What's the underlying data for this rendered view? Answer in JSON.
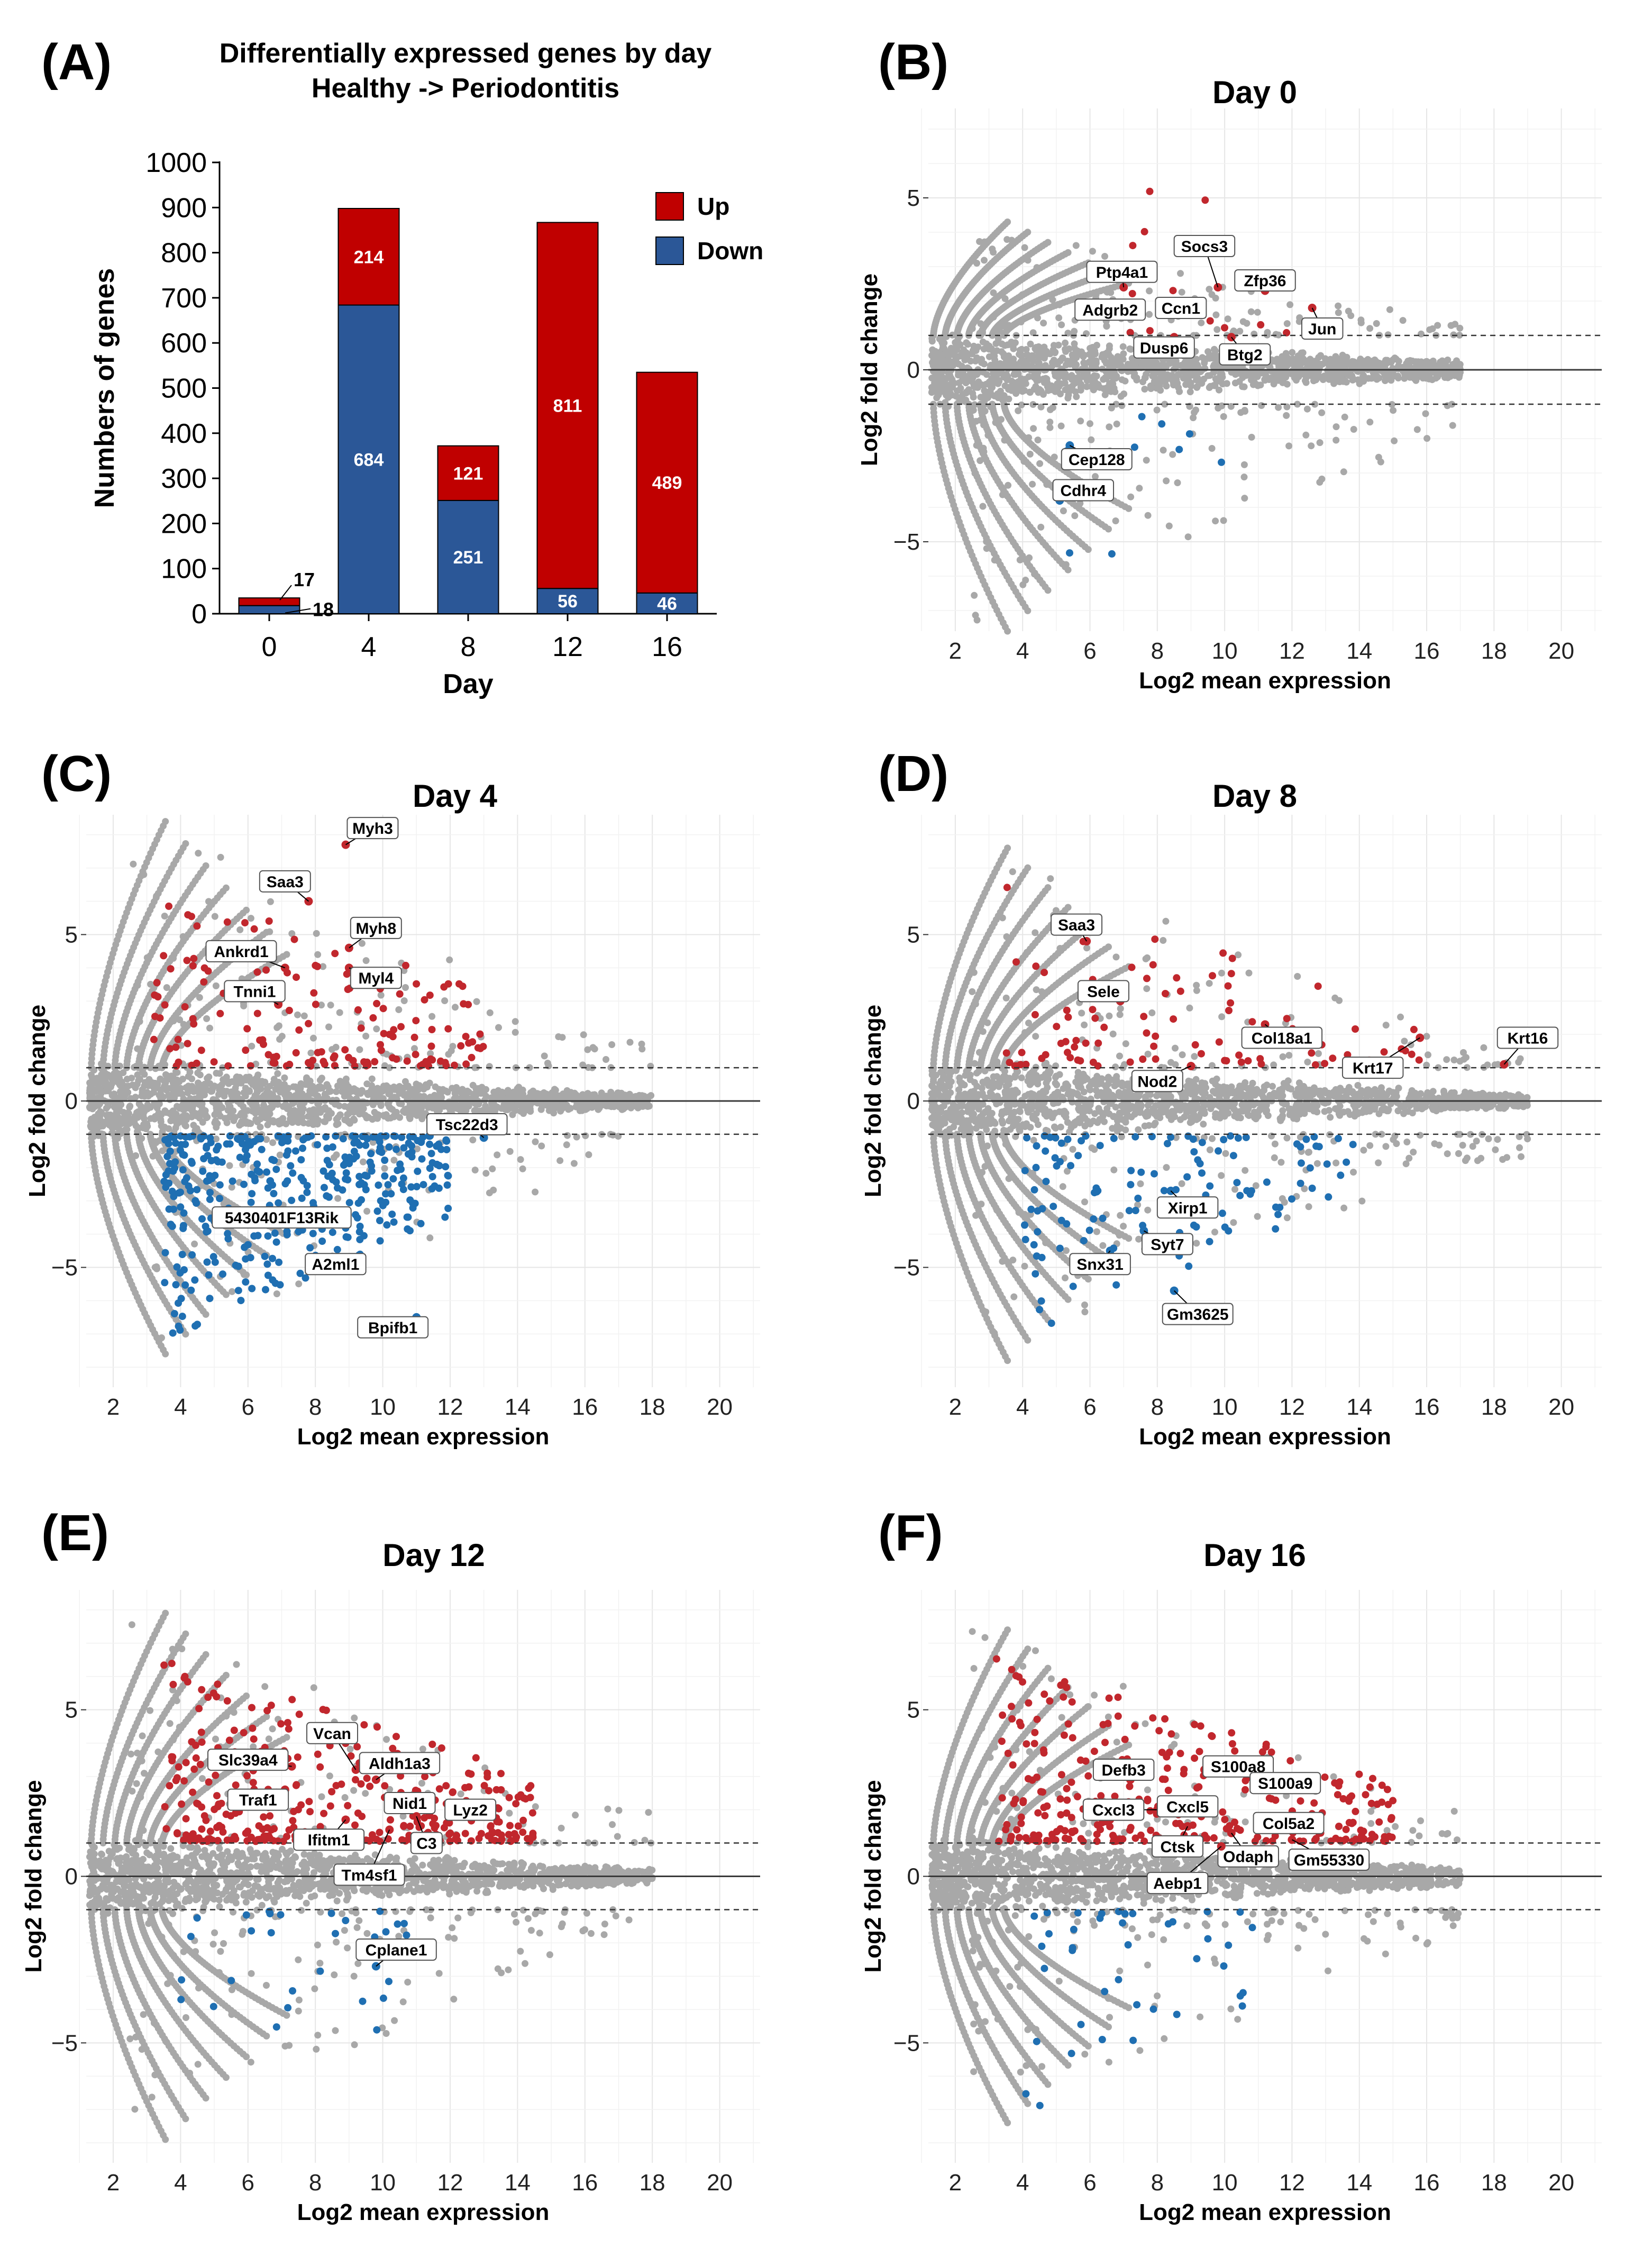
{
  "colors": {
    "up": "#c00000",
    "down": "#2b5797",
    "sig_up": "#c1272d",
    "sig_down": "#1f6fb2",
    "background": "#a8a8a8"
  },
  "panels": {
    "A": "(A)",
    "B": "(B)",
    "C": "(C)",
    "D": "(D)",
    "E": "(E)",
    "F": "(F)"
  },
  "chart_data": [
    {
      "id": "A",
      "type": "bar",
      "stacked": true,
      "title_line1": "Differentially expressed genes by day",
      "title_line2": "Healthy -> Periodontitis",
      "xlabel": "Day",
      "ylabel": "Numbers of genes",
      "ylim": [
        0,
        1000
      ],
      "yticks": [
        "0",
        "100",
        "200",
        "300",
        "400",
        "500",
        "600",
        "700",
        "800",
        "900",
        "1000"
      ],
      "categories": [
        "0",
        "4",
        "8",
        "12",
        "16"
      ],
      "series": [
        {
          "name": "Down",
          "values": [
            18,
            684,
            251,
            56,
            46
          ]
        },
        {
          "name": "Up",
          "values": [
            17,
            214,
            121,
            811,
            489
          ]
        }
      ],
      "value_labels": {
        "up": [
          "17",
          "214",
          "121",
          "811",
          "489"
        ],
        "down": [
          "18",
          "684",
          "251",
          "56",
          "46"
        ]
      },
      "legend": [
        "Up",
        "Down"
      ],
      "legend_position": "top-right"
    },
    {
      "id": "B",
      "type": "scatter",
      "title": "Day 0",
      "xlabel": "Log2 mean expression",
      "ylabel": "Log2 fold change",
      "xlim": [
        1.2,
        21.2
      ],
      "ylim": [
        -7.6,
        7.6
      ],
      "xticks": [
        "2",
        "4",
        "6",
        "8",
        "10",
        "12",
        "14",
        "16",
        "18",
        "20"
      ],
      "yticks": [
        "5",
        "0",
        "−5"
      ],
      "ytick_values": [
        5,
        0,
        -5
      ],
      "thresholds": [
        1,
        -1
      ],
      "bg_ymax": 4.3,
      "bg_ymin": -7.6,
      "core_half": 0.9,
      "tail_x": 17,
      "up_count": 14,
      "down_count": 9,
      "up_xr": [
        7,
        13
      ],
      "down_xr": [
        4.5,
        10
      ],
      "labeled_genes": [
        {
          "gene": "Ptp4a1",
          "x": 7.0,
          "y": 2.4,
          "lx": 6.95,
          "ly": 2.85
        },
        {
          "gene": "Socs3",
          "x": 9.8,
          "y": 2.4,
          "lx": 9.4,
          "ly": 3.6
        },
        {
          "gene": "Zfp36",
          "x": 11.2,
          "y": 2.3,
          "lx": 11.2,
          "ly": 2.6
        },
        {
          "gene": "Adgrb2",
          "x": 7.2,
          "y": 1.7,
          "lx": 6.6,
          "ly": 1.75
        },
        {
          "gene": "Ccn1",
          "x": 8.8,
          "y": 1.6,
          "lx": 8.7,
          "ly": 1.8
        },
        {
          "gene": "Jun",
          "x": 12.6,
          "y": 1.8,
          "lx": 12.9,
          "ly": 1.2
        },
        {
          "gene": "Dusp6",
          "x": 8.5,
          "y": 0.95,
          "lx": 8.2,
          "ly": 0.65
        },
        {
          "gene": "Btg2",
          "x": 10.2,
          "y": 0.95,
          "lx": 10.6,
          "ly": 0.45
        },
        {
          "gene": "Cep128",
          "x": 5.4,
          "y": -2.2,
          "lx": 6.2,
          "ly": -2.6
        },
        {
          "gene": "Cdhr4",
          "x": 5.1,
          "y": -3.8,
          "lx": 5.8,
          "ly": -3.5
        }
      ],
      "seed": 11
    },
    {
      "id": "C",
      "type": "scatter",
      "title": "Day 4",
      "xlabel": "Log2 mean expression",
      "ylabel": "Log2 fold change",
      "xlim": [
        1.2,
        21.2
      ],
      "ylim": [
        -8.6,
        8.6
      ],
      "xticks": [
        "2",
        "4",
        "6",
        "8",
        "10",
        "12",
        "14",
        "16",
        "18",
        "20"
      ],
      "yticks": [
        "5",
        "0",
        "−5"
      ],
      "ytick_values": [
        5,
        0,
        -5
      ],
      "thresholds": [
        1,
        -1
      ],
      "bg_ymax": 8.4,
      "bg_ymin": -7.6,
      "core_half": 0.95,
      "tail_x": 18,
      "up_count": 150,
      "down_count": 380,
      "up_xr": [
        3.2,
        13
      ],
      "down_xr": [
        3.5,
        12
      ],
      "labeled_genes": [
        {
          "gene": "Myh3",
          "x": 8.9,
          "y": 7.7,
          "lx": 9.7,
          "ly": 8.2
        },
        {
          "gene": "Saa3",
          "x": 7.8,
          "y": 6.0,
          "lx": 7.1,
          "ly": 6.6
        },
        {
          "gene": "Myh8",
          "x": 9.0,
          "y": 4.6,
          "lx": 9.8,
          "ly": 5.2
        },
        {
          "gene": "Ankrd1",
          "x": 7.1,
          "y": 4.0,
          "lx": 5.8,
          "ly": 4.5
        },
        {
          "gene": "Myl4",
          "x": 9.0,
          "y": 4.0,
          "lx": 9.8,
          "ly": 3.7
        },
        {
          "gene": "Tnni1",
          "x": 6.9,
          "y": 2.9,
          "lx": 6.2,
          "ly": 3.3
        },
        {
          "gene": "Tsc22d3",
          "x": 13.0,
          "y": -1.1,
          "lx": 12.5,
          "ly": -0.7
        },
        {
          "gene": "5430401F13Rik",
          "x": 7.4,
          "y": -3.4,
          "lx": 7.0,
          "ly": -3.5
        },
        {
          "gene": "A2ml1",
          "x": 8.2,
          "y": -5.1,
          "lx": 8.6,
          "ly": -4.9
        },
        {
          "gene": "Bpifb1",
          "x": 11.0,
          "y": -6.5,
          "lx": 10.3,
          "ly": -6.8
        }
      ],
      "seed": 22
    },
    {
      "id": "D",
      "type": "scatter",
      "title": "Day 8",
      "xlabel": "Log2 mean expression",
      "ylabel": "Log2 fold change",
      "xlim": [
        1.2,
        21.2
      ],
      "ylim": [
        -8.6,
        8.6
      ],
      "xticks": [
        "2",
        "4",
        "6",
        "8",
        "10",
        "12",
        "14",
        "16",
        "18",
        "20"
      ],
      "yticks": [
        "5",
        "0",
        "−5"
      ],
      "ytick_values": [
        5,
        0,
        -5
      ],
      "thresholds": [
        1,
        -1
      ],
      "bg_ymax": 7.6,
      "bg_ymin": -7.8,
      "core_half": 1.0,
      "tail_x": 19,
      "up_count": 90,
      "down_count": 120,
      "up_xr": [
        3.5,
        16
      ],
      "down_xr": [
        4,
        14
      ],
      "labeled_genes": [
        {
          "gene": "Saa3",
          "x": 5.9,
          "y": 4.8,
          "lx": 5.6,
          "ly": 5.3
        },
        {
          "gene": "Sele",
          "x": 6.9,
          "y": 3.0,
          "lx": 6.4,
          "ly": 3.3
        },
        {
          "gene": "Col18a1",
          "x": 11.2,
          "y": 2.3,
          "lx": 11.7,
          "ly": 1.9
        },
        {
          "gene": "Krt17",
          "x": 15.8,
          "y": 1.9,
          "lx": 14.4,
          "ly": 1.0
        },
        {
          "gene": "Krt16",
          "x": 18.3,
          "y": 1.1,
          "lx": 19.0,
          "ly": 1.9
        },
        {
          "gene": "Nod2",
          "x": 9.0,
          "y": 1.05,
          "lx": 8.0,
          "ly": 0.6
        },
        {
          "gene": "Xirp1",
          "x": 8.4,
          "y": -2.7,
          "lx": 8.9,
          "ly": -3.2
        },
        {
          "gene": "Syt7",
          "x": 7.6,
          "y": -3.9,
          "lx": 8.3,
          "ly": -4.3
        },
        {
          "gene": "Snx31",
          "x": 6.6,
          "y": -4.5,
          "lx": 6.3,
          "ly": -4.9
        },
        {
          "gene": "Gm3625",
          "x": 8.5,
          "y": -5.7,
          "lx": 9.2,
          "ly": -6.4
        }
      ],
      "seed": 33
    },
    {
      "id": "E",
      "type": "scatter",
      "title": "Day 12",
      "xlabel": "Log2 mean expression",
      "ylabel": "Log2 fold change",
      "xlim": [
        1.2,
        21.2
      ],
      "ylim": [
        -8.6,
        8.6
      ],
      "xticks": [
        "2",
        "4",
        "6",
        "8",
        "10",
        "12",
        "14",
        "16",
        "18",
        "20"
      ],
      "yticks": [
        "5",
        "0",
        "−5"
      ],
      "ytick_values": [
        5,
        0,
        -5
      ],
      "thresholds": [
        1,
        -1
      ],
      "bg_ymax": 7.9,
      "bg_ymin": -7.9,
      "core_half": 0.95,
      "tail_x": 18,
      "up_count": 330,
      "down_count": 30,
      "up_xr": [
        3.5,
        14.5
      ],
      "down_xr": [
        4,
        11
      ],
      "labeled_genes": [
        {
          "gene": "Vcan",
          "x": 9.2,
          "y": 3.2,
          "lx": 8.5,
          "ly": 4.3
        },
        {
          "gene": "Slc39a4",
          "x": 7.3,
          "y": 3.3,
          "lx": 6.0,
          "ly": 3.5
        },
        {
          "gene": "Aldh1a3",
          "x": 9.8,
          "y": 2.9,
          "lx": 10.5,
          "ly": 3.4
        },
        {
          "gene": "Traf1",
          "x": 7.1,
          "y": 2.6,
          "lx": 6.3,
          "ly": 2.3
        },
        {
          "gene": "Nid1",
          "x": 10.5,
          "y": 2.3,
          "lx": 10.8,
          "ly": 2.2
        },
        {
          "gene": "Lyz2",
          "x": 12.6,
          "y": 2.1,
          "lx": 12.6,
          "ly": 2.0
        },
        {
          "gene": "Ifitm1",
          "x": 8.9,
          "y": 1.7,
          "lx": 8.4,
          "ly": 1.1
        },
        {
          "gene": "C3",
          "x": 11.0,
          "y": 1.8,
          "lx": 11.3,
          "ly": 1.0
        },
        {
          "gene": "Tm4sf1",
          "x": 10.2,
          "y": 1.4,
          "lx": 9.6,
          "ly": 0.05
        },
        {
          "gene": "Cplane1",
          "x": 9.8,
          "y": -2.7,
          "lx": 10.4,
          "ly": -2.2
        }
      ],
      "seed": 44
    },
    {
      "id": "F",
      "type": "scatter",
      "title": "Day 16",
      "xlabel": "Log2 mean expression",
      "ylabel": "Log2 fold change",
      "xlim": [
        1.2,
        21.2
      ],
      "ylim": [
        -8.6,
        8.6
      ],
      "xticks": [
        "2",
        "4",
        "6",
        "8",
        "10",
        "12",
        "14",
        "16",
        "18",
        "20"
      ],
      "yticks": [
        "5",
        "0",
        "−5"
      ],
      "ytick_values": [
        5,
        0,
        -5
      ],
      "thresholds": [
        1,
        -1
      ],
      "bg_ymax": 7.4,
      "bg_ymin": -7.4,
      "core_half": 0.95,
      "tail_x": 17,
      "up_count": 300,
      "down_count": 40,
      "up_xr": [
        3.2,
        15
      ],
      "down_xr": [
        4,
        11
      ],
      "labeled_genes": [
        {
          "gene": "Defb3",
          "x": 7.2,
          "y": 2.9,
          "lx": 7.0,
          "ly": 3.2
        },
        {
          "gene": "S100a8",
          "x": 9.4,
          "y": 3.2,
          "lx": 10.4,
          "ly": 3.3
        },
        {
          "gene": "S100a9",
          "x": 11.0,
          "y": 2.9,
          "lx": 11.8,
          "ly": 2.8
        },
        {
          "gene": "Cxcl3",
          "x": 8.0,
          "y": 2.0,
          "lx": 6.7,
          "ly": 2.0
        },
        {
          "gene": "Cxcl5",
          "x": 9.0,
          "y": 2.0,
          "lx": 8.9,
          "ly": 2.1
        },
        {
          "gene": "Col5a2",
          "x": 11.6,
          "y": 1.7,
          "lx": 11.9,
          "ly": 1.6
        },
        {
          "gene": "Ctsk",
          "x": 8.9,
          "y": 1.5,
          "lx": 8.6,
          "ly": 0.9
        },
        {
          "gene": "Odaph",
          "x": 10.2,
          "y": 1.3,
          "lx": 10.7,
          "ly": 0.6
        },
        {
          "gene": "Gm55330",
          "x": 12.0,
          "y": 1.1,
          "lx": 13.1,
          "ly": 0.5
        },
        {
          "gene": "Aebp1",
          "x": 9.9,
          "y": 0.9,
          "lx": 8.6,
          "ly": -0.2
        }
      ],
      "seed": 55
    }
  ]
}
